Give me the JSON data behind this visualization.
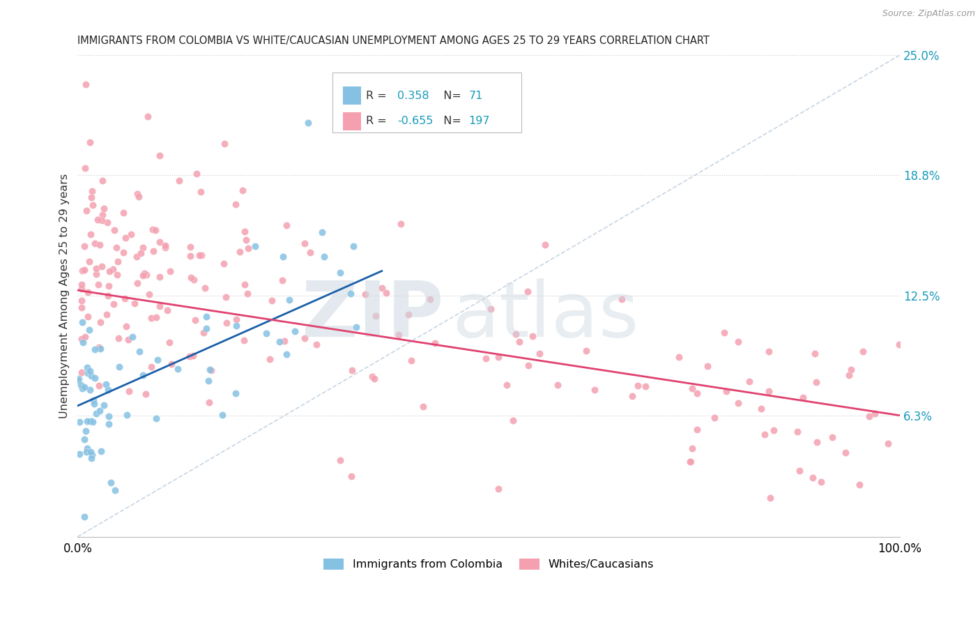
{
  "title": "IMMIGRANTS FROM COLOMBIA VS WHITE/CAUCASIAN UNEMPLOYMENT AMONG AGES 25 TO 29 YEARS CORRELATION CHART",
  "source": "Source: ZipAtlas.com",
  "ylabel": "Unemployment Among Ages 25 to 29 years",
  "xmin": 0.0,
  "xmax": 1.0,
  "ymin": 0.0,
  "ymax": 0.25,
  "yticks": [
    0.063,
    0.125,
    0.188,
    0.25
  ],
  "ytick_labels": [
    "6.3%",
    "12.5%",
    "18.8%",
    "25.0%"
  ],
  "blue_R": "0.358",
  "blue_N": "71",
  "pink_R": "-0.655",
  "pink_N": "197",
  "blue_color": "#85c1e2",
  "pink_color": "#f4a0b0",
  "blue_line_color": "#1a5fa8",
  "pink_line_color": "#e0426f",
  "diagonal_color": "#c5d5e5",
  "legend_label_blue": "Immigrants from Colombia",
  "legend_label_pink": "Whites/Caucasians",
  "R_value_color": "#1a9bba",
  "right_axis_color": "#1a9bba",
  "blue_trend_x0": 0.0,
  "blue_trend_y0": 0.068,
  "blue_trend_x1": 0.37,
  "blue_trend_y1": 0.138,
  "pink_trend_x0": 0.0,
  "pink_trend_y0": 0.128,
  "pink_trend_x1": 1.0,
  "pink_trend_y1": 0.063
}
